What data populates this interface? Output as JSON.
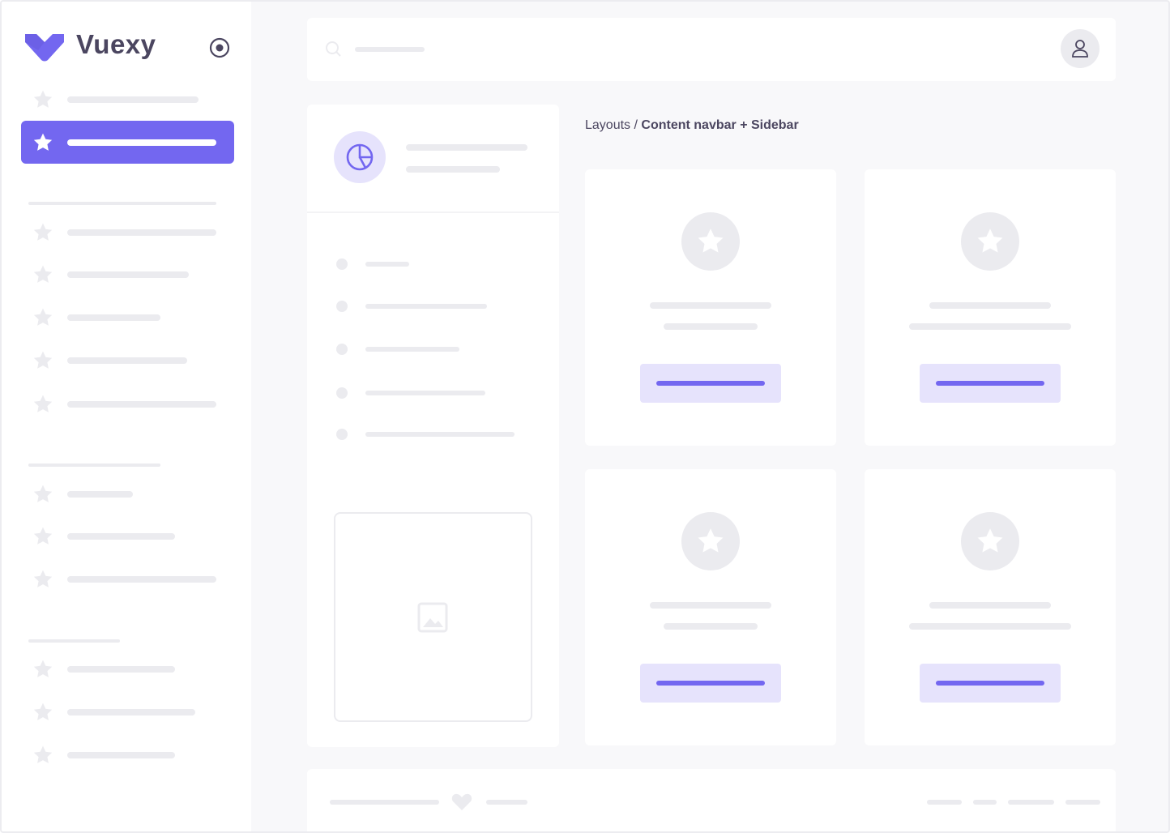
{
  "brand": {
    "name": "Vuexy"
  },
  "breadcrumb": {
    "parent": "Layouts",
    "separator": "/",
    "current": "Content navbar + Sidebar"
  },
  "colors": {
    "primary": "#7367f0",
    "primary_light": "#e6e3fc",
    "skeleton": "#ebebef",
    "background": "#f8f8fa"
  },
  "icons": {
    "logo": "vuexy-logo-icon",
    "toggle": "radio-circle-icon",
    "nav": "star-icon",
    "search": "search-icon",
    "user": "user-icon",
    "chart": "pie-chart-icon",
    "image": "image-icon",
    "heart": "heart-icon"
  }
}
